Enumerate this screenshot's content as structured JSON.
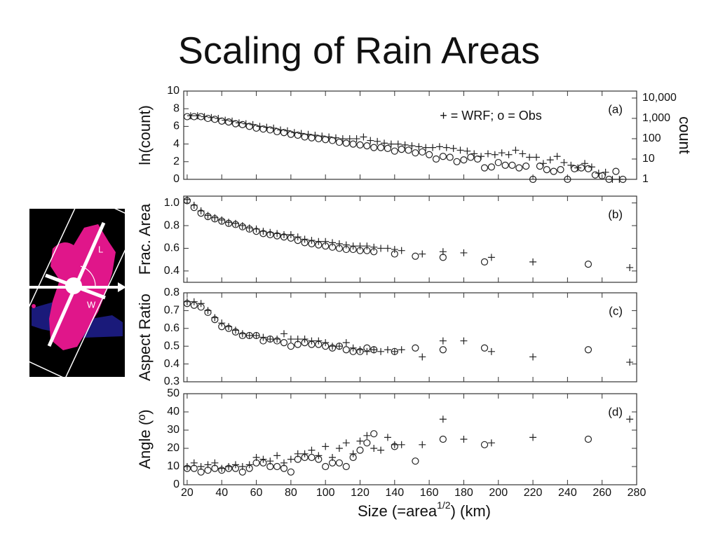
{
  "title": "Scaling of Rain Areas",
  "inset": {
    "labels": [
      "L",
      "W"
    ]
  },
  "chart_data": [
    {
      "type": "scatter",
      "ylabel": "ln(count)",
      "panel_label": "(a)",
      "annotation": "+ = WRF; o = Obs",
      "xlim": [
        18,
        280
      ],
      "xticks": [
        20,
        40,
        60,
        80,
        100,
        120,
        140,
        160,
        180,
        200,
        220,
        240,
        260,
        280
      ],
      "ylim": [
        0,
        10
      ],
      "yticks": [
        0,
        2,
        4,
        6,
        8,
        10
      ],
      "y2label": "count",
      "y2scale": "log",
      "y2lim": [
        1,
        22026
      ],
      "y2ticks": [
        {
          "value": 10000,
          "label": "10,000"
        },
        {
          "value": 1000,
          "label": "1,000"
        },
        100,
        10,
        1
      ],
      "series": [
        {
          "marker": "o",
          "color": "#222222",
          "x": [
            20,
            24,
            28,
            32,
            36,
            40,
            44,
            48,
            52,
            56,
            60,
            64,
            68,
            72,
            76,
            80,
            84,
            88,
            92,
            96,
            100,
            104,
            108,
            112,
            116,
            120,
            124,
            128,
            132,
            136,
            140,
            144,
            148,
            152,
            156,
            160,
            164,
            168,
            172,
            176,
            180,
            184,
            188,
            192,
            196,
            200,
            204,
            208,
            212,
            216,
            220,
            224,
            228,
            232,
            236,
            240,
            244,
            248,
            252,
            256,
            260,
            264,
            268,
            272
          ],
          "values": [
            7.1,
            7.1,
            7.1,
            6.9,
            6.8,
            6.6,
            6.5,
            6.3,
            6.2,
            6.0,
            5.8,
            5.7,
            5.6,
            5.4,
            5.3,
            5.1,
            5.0,
            4.8,
            4.7,
            4.6,
            4.5,
            4.4,
            4.2,
            4.1,
            4.0,
            3.9,
            3.8,
            3.6,
            3.6,
            3.5,
            3.2,
            3.4,
            3.3,
            3.0,
            3.1,
            2.8,
            2.3,
            2.6,
            2.5,
            2.0,
            2.2,
            2.5,
            2.3,
            1.3,
            1.4,
            1.9,
            1.6,
            1.6,
            1.3,
            1.5,
            0,
            1.5,
            1.1,
            0.9,
            1.1,
            0,
            1.2,
            1.3,
            1.2,
            0.5,
            0.4,
            0,
            0.9,
            0
          ]
        },
        {
          "marker": "+",
          "color": "#222222",
          "x": [
            22,
            26,
            30,
            34,
            38,
            42,
            46,
            50,
            54,
            58,
            62,
            66,
            70,
            74,
            78,
            82,
            86,
            90,
            94,
            98,
            102,
            106,
            110,
            114,
            118,
            122,
            126,
            130,
            134,
            138,
            142,
            146,
            150,
            154,
            158,
            162,
            166,
            170,
            174,
            178,
            182,
            186,
            190,
            194,
            198,
            202,
            206,
            210,
            214,
            218,
            222,
            226,
            230,
            234,
            238,
            242,
            246,
            250,
            254,
            258,
            262,
            266,
            270
          ],
          "values": [
            7.2,
            7.2,
            7.1,
            7.0,
            6.9,
            6.7,
            6.6,
            6.4,
            6.3,
            6.2,
            6.0,
            5.9,
            5.8,
            5.6,
            5.5,
            5.3,
            5.2,
            5.1,
            5.0,
            4.9,
            4.8,
            4.7,
            4.6,
            4.6,
            4.6,
            4.8,
            4.4,
            4.3,
            4.1,
            4.0,
            4.0,
            3.9,
            3.8,
            3.7,
            3.6,
            3.6,
            3.7,
            3.6,
            3.5,
            3.3,
            3.2,
            2.9,
            2.6,
            2.9,
            2.8,
            3.0,
            2.8,
            3.3,
            2.9,
            2.5,
            2.5,
            1.8,
            2.2,
            2.6,
            1.9,
            1.6,
            1.3,
            1.8,
            1.4,
            0.7,
            0.8,
            0,
            0
          ]
        }
      ]
    },
    {
      "type": "scatter",
      "ylabel": "Frac. Area",
      "panel_label": "(b)",
      "xlim": [
        18,
        280
      ],
      "xticks": [
        20,
        40,
        60,
        80,
        100,
        120,
        140,
        160,
        180,
        200,
        220,
        240,
        260,
        280
      ],
      "ylim": [
        0.3,
        1.06
      ],
      "yticks": [
        0.4,
        0.6,
        0.8,
        {
          "value": 1,
          "label": "1.0"
        }
      ],
      "series": [
        {
          "marker": "o",
          "color": "#222222",
          "x": [
            20,
            24,
            28,
            32,
            36,
            40,
            44,
            48,
            52,
            56,
            60,
            64,
            68,
            72,
            76,
            80,
            84,
            88,
            92,
            96,
            100,
            104,
            108,
            112,
            116,
            120,
            124,
            128,
            140,
            152,
            168,
            192,
            252
          ],
          "values": [
            1.02,
            0.96,
            0.91,
            0.88,
            0.86,
            0.84,
            0.82,
            0.81,
            0.79,
            0.77,
            0.75,
            0.73,
            0.72,
            0.71,
            0.7,
            0.69,
            0.67,
            0.65,
            0.64,
            0.63,
            0.62,
            0.61,
            0.6,
            0.59,
            0.59,
            0.58,
            0.58,
            0.57,
            0.55,
            0.53,
            0.52,
            0.48,
            0.46
          ]
        },
        {
          "marker": "+",
          "color": "#222222",
          "x": [
            20,
            24,
            28,
            32,
            36,
            40,
            44,
            48,
            52,
            56,
            60,
            64,
            68,
            72,
            76,
            80,
            84,
            88,
            92,
            96,
            100,
            104,
            108,
            112,
            116,
            120,
            124,
            128,
            132,
            136,
            140,
            144,
            156,
            168,
            180,
            196,
            220,
            276
          ],
          "values": [
            1.03,
            0.98,
            0.93,
            0.89,
            0.87,
            0.85,
            0.83,
            0.82,
            0.8,
            0.78,
            0.77,
            0.75,
            0.74,
            0.73,
            0.72,
            0.72,
            0.7,
            0.68,
            0.67,
            0.66,
            0.66,
            0.65,
            0.64,
            0.63,
            0.62,
            0.62,
            0.62,
            0.61,
            0.6,
            0.6,
            0.59,
            0.58,
            0.55,
            0.57,
            0.56,
            0.52,
            0.48,
            0.43
          ]
        }
      ]
    },
    {
      "type": "scatter",
      "ylabel": "Aspect Ratio",
      "panel_label": "(c)",
      "xlim": [
        18,
        280
      ],
      "xticks": [
        20,
        40,
        60,
        80,
        100,
        120,
        140,
        160,
        180,
        200,
        220,
        240,
        260,
        280
      ],
      "ylim": [
        0.3,
        0.8
      ],
      "yticks": [
        0.3,
        0.4,
        0.5,
        0.6,
        0.7,
        0.8
      ],
      "series": [
        {
          "marker": "o",
          "color": "#222222",
          "x": [
            20,
            24,
            28,
            32,
            36,
            40,
            44,
            48,
            52,
            56,
            60,
            64,
            68,
            72,
            76,
            80,
            84,
            88,
            92,
            96,
            100,
            104,
            108,
            112,
            116,
            120,
            124,
            128,
            140,
            152,
            168,
            192,
            252
          ],
          "values": [
            0.74,
            0.73,
            0.72,
            0.69,
            0.65,
            0.61,
            0.6,
            0.58,
            0.56,
            0.56,
            0.56,
            0.53,
            0.54,
            0.53,
            0.52,
            0.5,
            0.51,
            0.52,
            0.51,
            0.51,
            0.5,
            0.49,
            0.5,
            0.48,
            0.47,
            0.47,
            0.49,
            0.48,
            0.47,
            0.49,
            0.48,
            0.49,
            0.48
          ]
        },
        {
          "marker": "+",
          "color": "#222222",
          "x": [
            20,
            24,
            28,
            32,
            36,
            40,
            44,
            48,
            52,
            56,
            60,
            64,
            68,
            72,
            76,
            80,
            84,
            88,
            92,
            96,
            100,
            104,
            108,
            112,
            116,
            120,
            124,
            128,
            132,
            136,
            140,
            144,
            156,
            168,
            180,
            196,
            220,
            276
          ],
          "values": [
            0.75,
            0.75,
            0.74,
            0.7,
            0.66,
            0.63,
            0.61,
            0.59,
            0.57,
            0.56,
            0.56,
            0.55,
            0.54,
            0.54,
            0.57,
            0.54,
            0.54,
            0.54,
            0.53,
            0.53,
            0.52,
            0.5,
            0.5,
            0.52,
            0.49,
            0.48,
            0.47,
            0.48,
            0.47,
            0.48,
            0.47,
            0.48,
            0.44,
            0.53,
            0.53,
            0.47,
            0.44,
            0.41
          ]
        }
      ]
    },
    {
      "type": "scatter",
      "ylabel": "Angle (º)",
      "panel_label": "(d)",
      "xlabel": "Size (=area",
      "xlabel_sup": "1/2",
      "xlabel_end": ") (km)",
      "xlim": [
        18,
        280
      ],
      "xticks": [
        20,
        40,
        60,
        80,
        100,
        120,
        140,
        160,
        180,
        200,
        220,
        240,
        260,
        280
      ],
      "ylim": [
        0,
        50
      ],
      "yticks": [
        0,
        10,
        20,
        30,
        40,
        50
      ],
      "series": [
        {
          "marker": "o",
          "color": "#222222",
          "x": [
            20,
            24,
            28,
            32,
            36,
            40,
            44,
            48,
            52,
            56,
            60,
            64,
            68,
            72,
            76,
            80,
            84,
            88,
            92,
            96,
            100,
            104,
            108,
            112,
            116,
            120,
            124,
            128,
            140,
            152,
            168,
            192,
            252
          ],
          "values": [
            9,
            9,
            7,
            8,
            9,
            8,
            9,
            9,
            7,
            9,
            12,
            12,
            10,
            10,
            9,
            7,
            14,
            15,
            15,
            14,
            10,
            12,
            12,
            10,
            15,
            19,
            23,
            28,
            21,
            13,
            25,
            22,
            25
          ]
        },
        {
          "marker": "+",
          "color": "#222222",
          "x": [
            20,
            24,
            28,
            32,
            36,
            40,
            44,
            48,
            52,
            56,
            60,
            64,
            68,
            72,
            76,
            80,
            84,
            88,
            92,
            96,
            100,
            104,
            108,
            112,
            116,
            120,
            124,
            128,
            132,
            136,
            140,
            144,
            156,
            168,
            180,
            196,
            220,
            276
          ],
          "values": [
            10,
            12,
            10,
            11,
            12,
            9,
            10,
            11,
            10,
            11,
            15,
            14,
            13,
            16,
            12,
            14,
            17,
            17,
            19,
            16,
            21,
            15,
            20,
            23,
            17,
            24,
            27,
            20,
            19,
            26,
            22,
            22,
            22,
            36,
            25,
            23,
            26,
            36
          ]
        }
      ]
    }
  ]
}
